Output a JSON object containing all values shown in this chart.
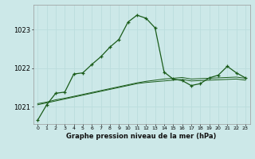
{
  "title": "Graphe pression niveau de la mer (hPa)",
  "bg_color": "#cce8e8",
  "grid_color": "#bbdddd",
  "line_color": "#1a5c1a",
  "marker_color": "#1a5c1a",
  "xlim": [
    -0.5,
    23.5
  ],
  "ylim": [
    1020.55,
    1023.65
  ],
  "yticks": [
    1021,
    1022,
    1023
  ],
  "xtick_labels": [
    "0",
    "1",
    "2",
    "3",
    "4",
    "5",
    "6",
    "7",
    "8",
    "9",
    "10",
    "11",
    "12",
    "13",
    "14",
    "15",
    "16",
    "17",
    "18",
    "19",
    "20",
    "21",
    "22",
    "23"
  ],
  "series1": [
    1020.65,
    1021.05,
    1021.35,
    1021.38,
    1021.85,
    1021.88,
    1022.1,
    1022.3,
    1022.55,
    1022.75,
    1023.2,
    1023.38,
    1023.3,
    1023.05,
    1021.9,
    1021.72,
    1021.68,
    1021.55,
    1021.6,
    1021.75,
    1021.82,
    1022.05,
    1021.88,
    1021.75
  ],
  "series2": [
    1021.08,
    1021.12,
    1021.18,
    1021.22,
    1021.27,
    1021.32,
    1021.37,
    1021.42,
    1021.47,
    1021.52,
    1021.57,
    1021.62,
    1021.66,
    1021.69,
    1021.72,
    1021.74,
    1021.76,
    1021.72,
    1021.73,
    1021.74,
    1021.75,
    1021.76,
    1021.77,
    1021.74
  ],
  "series3": [
    1021.05,
    1021.1,
    1021.15,
    1021.2,
    1021.25,
    1021.3,
    1021.35,
    1021.4,
    1021.45,
    1021.5,
    1021.55,
    1021.6,
    1021.63,
    1021.65,
    1021.67,
    1021.69,
    1021.71,
    1021.67,
    1021.68,
    1021.69,
    1021.7,
    1021.71,
    1021.72,
    1021.69
  ]
}
